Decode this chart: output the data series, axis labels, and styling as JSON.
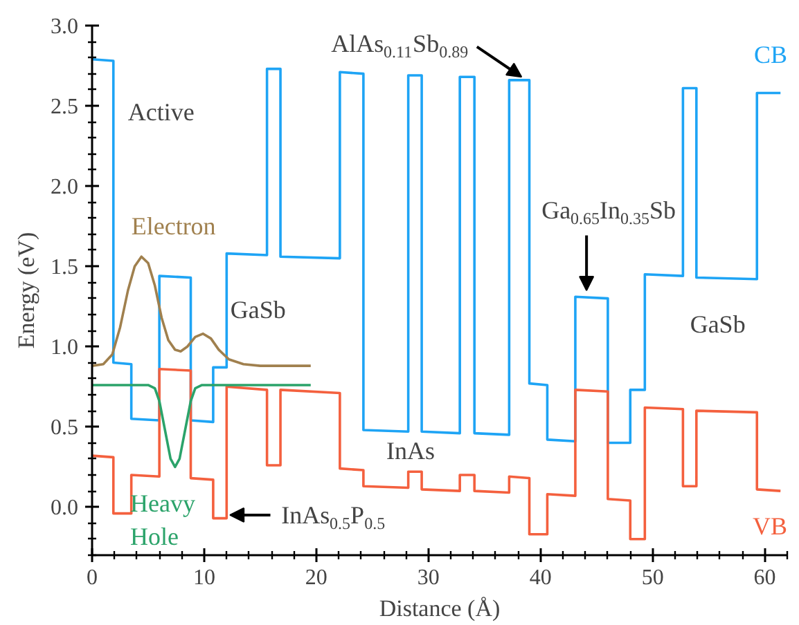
{
  "chart_data": {
    "type": "line",
    "xlabel": "Distance (Å)",
    "ylabel": "Energy (eV)",
    "xlim": [
      0,
      62
    ],
    "ylim": [
      -0.3,
      3.0
    ],
    "xticks": [
      0,
      10,
      20,
      30,
      40,
      50,
      60
    ],
    "yticks": [
      {
        "value": 0,
        "label": "0.0"
      },
      0.5,
      {
        "value": 1,
        "label": "1.0"
      },
      1.5,
      {
        "value": 2,
        "label": "2.0"
      },
      2.5,
      {
        "value": 3,
        "label": "3.0"
      }
    ],
    "grid": false,
    "legend": false,
    "marker": "none",
    "line_style": "solid",
    "series": [
      {
        "name": "CB",
        "color": "#1ea4f5",
        "x": [
          0,
          1.9,
          1.9,
          3.5,
          3.5,
          6.0,
          6.0,
          8.8,
          8.8,
          10.8,
          10.8,
          12.0,
          12.0,
          15.6,
          15.6,
          16.8,
          16.8,
          22.1,
          22.1,
          24.2,
          24.2,
          28.2,
          28.2,
          29.4,
          29.4,
          32.8,
          32.8,
          34.1,
          34.1,
          37.2,
          37.2,
          39.0,
          39.0,
          40.6,
          40.6,
          43.1,
          43.1,
          46.0,
          46.0,
          48.0,
          48.0,
          49.3,
          49.3,
          52.7,
          52.7,
          53.9,
          53.9,
          59.3,
          59.3,
          61.4
        ],
        "values": [
          2.79,
          2.78,
          0.9,
          0.89,
          0.55,
          0.54,
          1.44,
          1.43,
          0.54,
          0.53,
          0.87,
          0.87,
          1.58,
          1.57,
          2.73,
          2.73,
          1.56,
          1.55,
          2.71,
          2.7,
          0.48,
          0.47,
          2.69,
          2.69,
          0.47,
          0.46,
          2.68,
          2.68,
          0.46,
          0.45,
          2.66,
          2.66,
          0.77,
          0.76,
          0.42,
          0.41,
          1.31,
          1.3,
          0.4,
          0.4,
          0.73,
          0.73,
          1.45,
          1.44,
          2.61,
          2.61,
          1.43,
          1.42,
          2.58,
          2.58
        ]
      },
      {
        "name": "VB",
        "color": "#f4603e",
        "x": [
          0,
          1.9,
          1.9,
          3.5,
          3.5,
          6.0,
          6.0,
          8.8,
          8.8,
          10.8,
          10.8,
          12.0,
          12.0,
          15.6,
          15.6,
          16.8,
          16.8,
          22.1,
          22.1,
          24.2,
          24.2,
          28.2,
          28.2,
          29.4,
          29.4,
          32.8,
          32.8,
          34.1,
          34.1,
          37.2,
          37.2,
          39.0,
          39.0,
          40.6,
          40.6,
          43.1,
          43.1,
          46.0,
          46.0,
          48.0,
          48.0,
          49.3,
          49.3,
          52.7,
          52.7,
          53.9,
          53.9,
          59.3,
          59.3,
          61.4
        ],
        "values": [
          0.32,
          0.31,
          -0.04,
          -0.04,
          0.2,
          0.19,
          0.86,
          0.85,
          0.18,
          0.17,
          -0.07,
          -0.07,
          0.75,
          0.73,
          0.26,
          0.26,
          0.73,
          0.71,
          0.24,
          0.23,
          0.13,
          0.12,
          0.22,
          0.22,
          0.11,
          0.1,
          0.2,
          0.2,
          0.1,
          0.09,
          0.19,
          0.18,
          -0.17,
          -0.17,
          0.08,
          0.07,
          0.73,
          0.72,
          0.05,
          0.04,
          -0.2,
          -0.2,
          0.62,
          0.61,
          0.13,
          0.13,
          0.6,
          0.59,
          0.11,
          0.1
        ]
      },
      {
        "name": "Electron",
        "color": "#a0804e",
        "x": [
          0,
          1,
          1.8,
          2.5,
          3.2,
          3.8,
          4.4,
          5.0,
          5.6,
          6.2,
          6.8,
          7.4,
          7.9,
          8.5,
          9.2,
          9.9,
          10.6,
          11.3,
          12.2,
          13.5,
          15,
          19.5
        ],
        "values": [
          0.88,
          0.89,
          0.95,
          1.12,
          1.35,
          1.5,
          1.56,
          1.52,
          1.38,
          1.18,
          1.04,
          0.98,
          0.97,
          1.0,
          1.06,
          1.08,
          1.05,
          0.98,
          0.92,
          0.89,
          0.88,
          0.88
        ]
      },
      {
        "name": "Heavy Hole",
        "color": "#2ba36a",
        "x": [
          0,
          5.0,
          5.6,
          6.0,
          6.5,
          7.0,
          7.4,
          7.8,
          8.3,
          8.8,
          9.2,
          9.8,
          19.5
        ],
        "values": [
          0.76,
          0.76,
          0.74,
          0.66,
          0.48,
          0.3,
          0.25,
          0.3,
          0.48,
          0.66,
          0.74,
          0.76,
          0.76
        ]
      }
    ],
    "annotations": [
      "Active",
      "GaSb",
      "GaSb",
      "InAs",
      {
        "text": "AlAs$_{0.11}$Sb$_{0.89}$",
        "x": 38.3,
        "y": 2.68
      },
      {
        "text": "Ga$_{0.65}$In$_{0.35}$Sb",
        "x": 44.1,
        "y": 1.35
      },
      {
        "text": "InAs$_{0.5}$P$_{0.5}$",
        "x": 12.3,
        "y": -0.05
      }
    ]
  }
}
